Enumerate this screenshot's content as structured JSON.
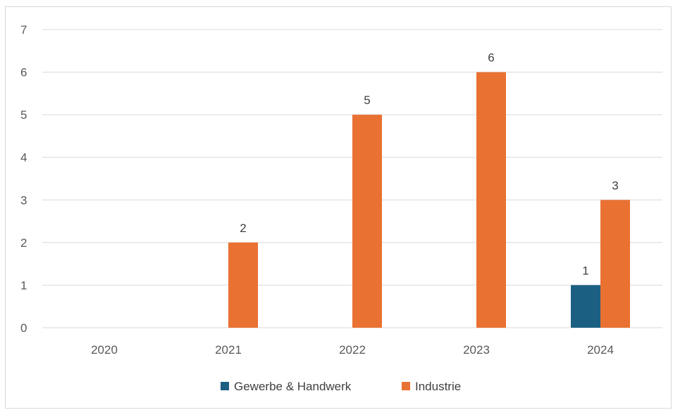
{
  "chart_data": {
    "type": "bar",
    "title": "",
    "xlabel": "",
    "ylabel": "",
    "categories": [
      "2020",
      "2021",
      "2022",
      "2023",
      "2024"
    ],
    "series": [
      {
        "name": "Gewerbe & Handwerk",
        "color": "#1b5f83",
        "values": [
          0,
          0,
          0,
          0,
          1
        ],
        "data_labels": [
          "",
          "",
          "",
          "",
          "1"
        ]
      },
      {
        "name": "Industrie",
        "color": "#e97132",
        "values": [
          0,
          2,
          5,
          6,
          3
        ],
        "data_labels": [
          "",
          "2",
          "5",
          "6",
          "3"
        ]
      }
    ],
    "ylim": [
      0,
      7
    ],
    "yticks": [
      "0",
      "1",
      "2",
      "3",
      "4",
      "5",
      "6",
      "7"
    ],
    "grid": true,
    "legend_position": "bottom"
  }
}
